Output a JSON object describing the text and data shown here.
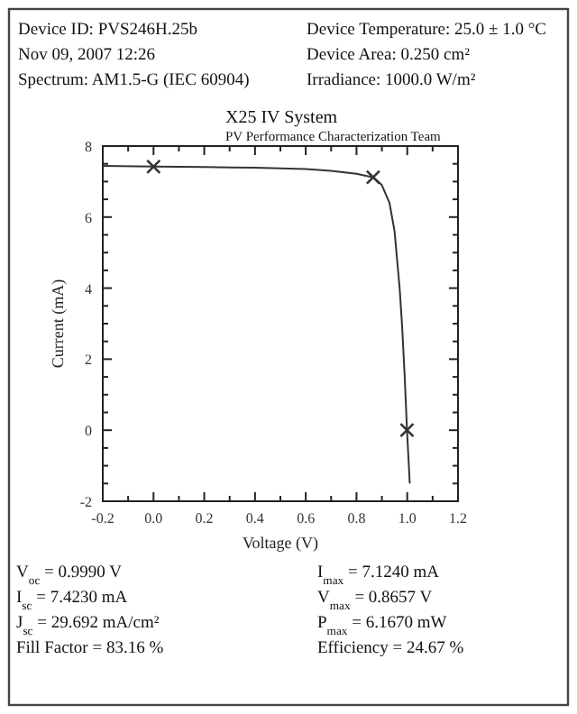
{
  "chart_data": {
    "type": "line",
    "title": "X25 IV System",
    "subtitle": "PV Performance Characterization Team",
    "xlabel": "Voltage (V)",
    "ylabel": "Current (mA)",
    "annotations": [
      "Device ID: PVS246H.25b",
      "Nov 09, 2007 12:26",
      "Spectrum: AM1.5-G (IEC 60904)",
      "Device Temperature: 25.0 ± 1.0 °C",
      "Device Area: 0.250 cm²",
      "Irradiance: 1000.0 W/m²",
      "V$_{oc}$ = 0.9990 V",
      "I$_{sc}$ = 7.4230 mA",
      "J$_{sc}$ = 29.692 mA/cm²",
      "Fill Factor = 83.16 %",
      "I$_{max}$ = 7.1240 mA",
      "V$_{max}$ = 0.8657 V",
      "P$_{max}$ = 6.1670 mW",
      "Efficiency = 24.67 %"
    ],
    "series": [
      {
        "color": "#333333",
        "marker": "none",
        "x": [
          -0.2,
          0,
          0.2,
          0.4,
          0.6,
          0.7,
          0.8,
          0.8657,
          0.9,
          0.93,
          0.95,
          0.97,
          0.98,
          0.99,
          0.999,
          1.01
        ],
        "values": [
          7.44,
          7.42,
          7.41,
          7.39,
          7.35,
          7.3,
          7.22,
          7.12,
          6.9,
          6.4,
          5.6,
          4.0,
          2.9,
          1.5,
          0,
          -1.5
        ]
      },
      {
        "type": "scatter",
        "color": "#333333",
        "marker": "cross",
        "x": [
          0,
          0.8657,
          0.999
        ],
        "values": [
          7.42,
          7.12,
          0
        ]
      }
    ],
    "xlim": [
      -0.2,
      1.2
    ],
    "ylim": [
      -2,
      8
    ],
    "xticks": [
      {
        "value": -0.2,
        "label": "-0.2"
      },
      {
        "value": -0.1,
        "label": null
      },
      {
        "value": 0,
        "label": "0.0"
      },
      {
        "value": 0.1,
        "label": null
      },
      {
        "value": 0.2,
        "label": "0.2"
      },
      {
        "value": 0.3,
        "label": null
      },
      {
        "value": 0.4,
        "label": "0.4"
      },
      {
        "value": 0.5,
        "label": null
      },
      {
        "value": 0.6,
        "label": "0.6"
      },
      {
        "value": 0.7,
        "label": null
      },
      {
        "value": 0.8,
        "label": "0.8"
      },
      {
        "value": 0.9,
        "label": null
      },
      {
        "value": 1.0,
        "label": "1.0"
      },
      {
        "value": 1.1,
        "label": null
      },
      {
        "value": 1.2,
        "label": "1.2"
      }
    ],
    "yticks": [
      -2,
      {
        "value": -1.5,
        "label": null
      },
      {
        "value": -1,
        "label": null
      },
      {
        "value": -0.5,
        "label": null
      },
      0,
      {
        "value": 0.5,
        "label": null
      },
      {
        "value": 1,
        "label": null
      },
      {
        "value": 1.5,
        "label": null
      },
      2,
      {
        "value": 2.5,
        "label": null
      },
      {
        "value": 3,
        "label": null
      },
      {
        "value": 3.5,
        "label": null
      },
      4,
      {
        "value": 4.5,
        "label": null
      },
      {
        "value": 5,
        "label": null
      },
      {
        "value": 5.5,
        "label": null
      },
      6,
      {
        "value": 6.5,
        "label": null
      },
      {
        "value": 7,
        "label": null
      },
      {
        "value": 7.5,
        "label": null
      },
      8
    ],
    "grid": false
  }
}
